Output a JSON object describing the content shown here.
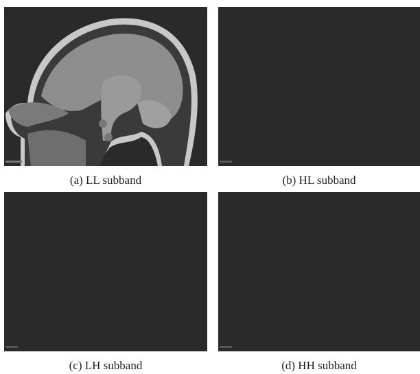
{
  "panels": [
    {
      "caption": "(a) LL subband"
    },
    {
      "caption": "(b) HL subband"
    },
    {
      "caption": "(c) LH subband"
    },
    {
      "caption": "(d) HH subband"
    }
  ]
}
